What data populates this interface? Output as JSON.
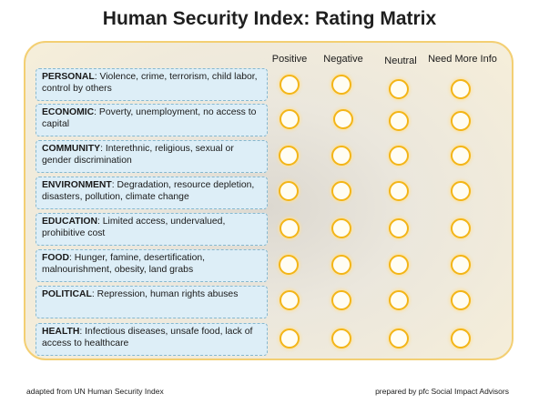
{
  "title": "Human Security Index: Rating Matrix",
  "columns": [
    "Positive",
    "Negative",
    "Neutral",
    "Need More Info"
  ],
  "rows": [
    {
      "category": "PERSONAL",
      "description": ":  Violence, crime, terrorism, child labor, control by others"
    },
    {
      "category": "ECONOMIC",
      "description": ": Poverty, unemployment, no access to capital"
    },
    {
      "category": "COMMUNITY",
      "description": ": Interethnic, religious, sexual or gender discrimination"
    },
    {
      "category": "ENVIRONMENT",
      "description": ": Degradation, resource depletion, disasters, pollution, climate change"
    },
    {
      "category": "EDUCATION",
      "description": ":  Limited access, undervalued, prohibitive cost"
    },
    {
      "category": "FOOD",
      "description": ": Hunger, famine, desertification, malnourishment, obesity, land grabs"
    },
    {
      "category": "POLITICAL",
      "description": ":  Repression, human rights abuses"
    },
    {
      "category": "HEALTH",
      "description": ": Infectious diseases, unsafe food, lack of access to healthcare"
    }
  ],
  "footer": {
    "left": "adapted from UN Human Security Index",
    "right": "prepared by pfc Social Impact Advisors"
  },
  "colors": {
    "option_circle_border": "#f3b518",
    "label_box_fill": "#ddeef7",
    "panel_border": "#f3cf73"
  }
}
